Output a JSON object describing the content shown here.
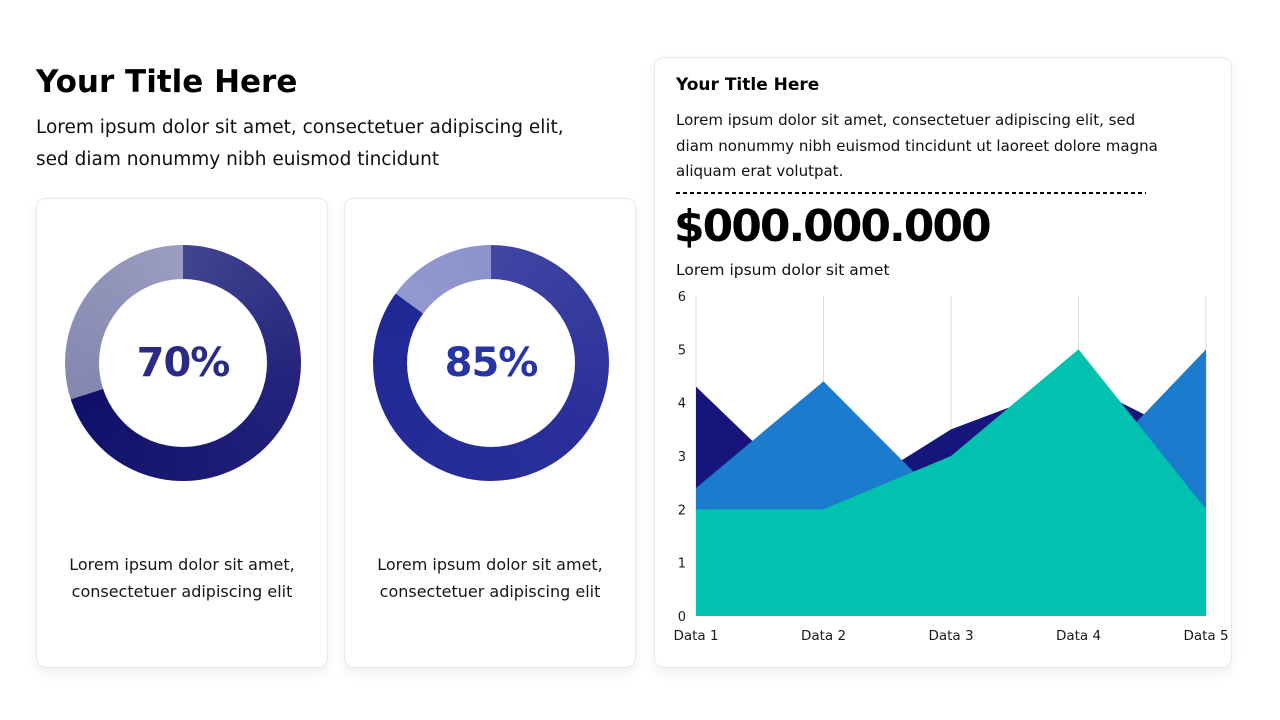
{
  "left_section": {
    "title": "Your Title Here",
    "subtitle": "Lorem ipsum dolor sit amet, consectetuer adipiscing elit,\nsed diam nonummy nibh euismod tincidunt"
  },
  "stat_cards": [
    {
      "percent_label": "70%",
      "value": 70,
      "caption": "Lorem ipsum dolor sit amet,\nconsectetuer adipiscing elit",
      "ring": {
        "fill_from": "#41458F",
        "fill_mid": "#23237B",
        "fill_to": "#10106A",
        "rest_from": "#8487AE",
        "rest_to": "#9A9CC1",
        "text_color": "#2B2B85"
      }
    },
    {
      "percent_label": "85%",
      "value": 85,
      "caption": "Lorem ipsum dolor sit amet,\nconsectetuer adipiscing elit",
      "ring": {
        "fill_from": "#4046A3",
        "fill_mid": "#2A2F99",
        "fill_to": "#1F2895",
        "rest_from": "#9298D0",
        "rest_to": "#8D92CB",
        "text_color": "#2734A4"
      }
    }
  ],
  "right_card": {
    "title": "Your Title Here",
    "paragraph": "Lorem ipsum dolor sit amet, consectetuer adipiscing elit, sed\ndiam nonummy nibh euismod tincidunt ut laoreet dolore magna\naliquam erat volutpat.",
    "amount": "$000.000.000",
    "amount_caption": "Lorem ipsum dolor sit amet"
  },
  "chart_data": {
    "type": "area",
    "title": "",
    "xlabel": "",
    "ylabel": "",
    "categories": [
      "Data 1",
      "Data 2",
      "Data 3",
      "Data 4",
      "Data 5"
    ],
    "series": [
      {
        "name": "navy-series",
        "color": "#15157B",
        "values": [
          4.3,
          2,
          3.5,
          4.4,
          3.2
        ]
      },
      {
        "name": "blue-series",
        "color": "#1B7CCD",
        "values": [
          2.4,
          4.4,
          2,
          2.5,
          5
        ]
      },
      {
        "name": "teal-series",
        "color": "#00C2AE",
        "values": [
          2,
          2,
          3,
          5,
          2
        ]
      }
    ],
    "overlap": "overlaid areas painted in listed order, not stacked",
    "ylim": [
      0,
      6
    ],
    "yticks": [
      0,
      1,
      2,
      3,
      4,
      5,
      6
    ],
    "grid": "vertical-only",
    "grid_color": "#DBDBDB",
    "legend": "none",
    "tick_color": "#1a1a1a"
  }
}
